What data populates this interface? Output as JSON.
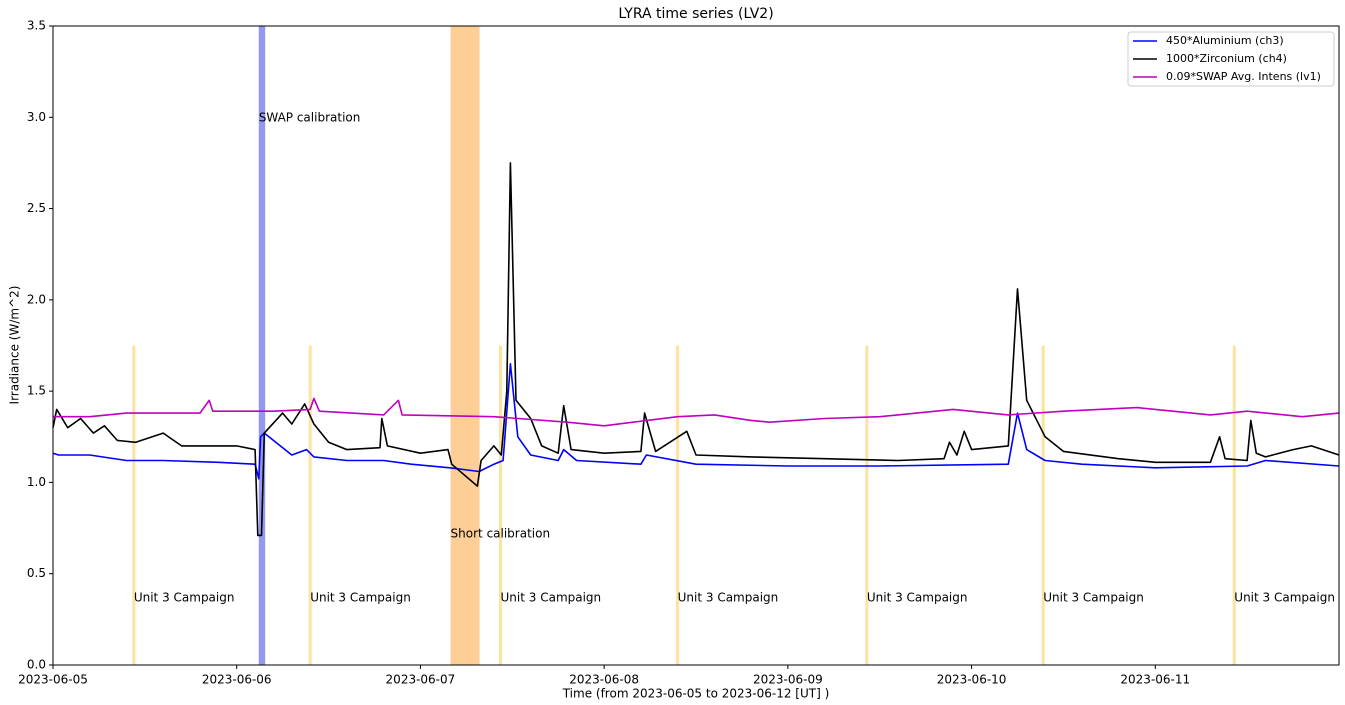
{
  "chart_data": {
    "type": "line",
    "title": "LYRA time series (LV2)",
    "xlabel": "Time (from 2023-06-05 to 2023-06-12 [UT] )",
    "ylabel": "Irradiance (W/m^2)",
    "xlim": [
      0,
      7
    ],
    "xticks": [
      {
        "value": 0,
        "label": "2023-06-05"
      },
      {
        "value": 1,
        "label": "2023-06-06"
      },
      {
        "value": 2,
        "label": "2023-06-07"
      },
      {
        "value": 3,
        "label": "2023-06-08"
      },
      {
        "value": 4,
        "label": "2023-06-09"
      },
      {
        "value": 5,
        "label": "2023-06-10"
      },
      {
        "value": 6,
        "label": "2023-06-11"
      }
    ],
    "ylim": [
      0,
      3.5
    ],
    "yticks": [
      {
        "value": 0,
        "label": "0.0"
      },
      {
        "value": 0.5,
        "label": "0.5"
      },
      {
        "value": 1,
        "label": "1.0"
      },
      {
        "value": 1.5,
        "label": "1.5"
      },
      {
        "value": 2,
        "label": "2.0"
      },
      {
        "value": 2.5,
        "label": "2.5"
      },
      {
        "value": 3,
        "label": "3.0"
      },
      {
        "value": 3.5,
        "label": "3.5"
      }
    ],
    "legend": "upper right",
    "spans": [
      {
        "label": "SWAP calibration",
        "x": [
          1.12,
          1.155
        ],
        "color": "#9499f0"
      },
      {
        "label": "Short calibration",
        "x": [
          2.164,
          2.322
        ],
        "color": "#fdcf96"
      }
    ],
    "campaigns": {
      "label": "Unit 3 Campaign",
      "x": [
        0.44,
        1.4,
        2.436,
        3.4,
        4.43,
        5.39,
        6.43
      ],
      "ymax": 1.75,
      "color": "#fde2a0"
    },
    "series": [
      {
        "name": "450*Aluminium (ch3)",
        "color": "#0000ff",
        "x": [
          0,
          0.03,
          0.2,
          0.4,
          0.6,
          0.9,
          1.1,
          1.12,
          1.13,
          1.15,
          1.3,
          1.38,
          1.42,
          1.6,
          1.8,
          1.95,
          2.16,
          2.32,
          2.4,
          2.45,
          2.49,
          2.53,
          2.6,
          2.75,
          2.78,
          2.85,
          3.2,
          3.23,
          3.5,
          4.0,
          4.5,
          5.2,
          5.25,
          5.3,
          5.4,
          5.6,
          6.0,
          6.5,
          6.6,
          7.0
        ],
        "values": [
          1.16,
          1.15,
          1.15,
          1.12,
          1.12,
          1.11,
          1.1,
          1.02,
          1.25,
          1.27,
          1.15,
          1.18,
          1.14,
          1.12,
          1.12,
          1.1,
          1.08,
          1.06,
          1.1,
          1.12,
          1.65,
          1.25,
          1.15,
          1.12,
          1.18,
          1.12,
          1.1,
          1.15,
          1.1,
          1.09,
          1.09,
          1.1,
          1.38,
          1.18,
          1.12,
          1.1,
          1.08,
          1.09,
          1.12,
          1.09
        ]
      },
      {
        "name": "1000*Zirconium (ch4)",
        "color": "#000000",
        "x": [
          0,
          0.02,
          0.08,
          0.15,
          0.22,
          0.28,
          0.35,
          0.45,
          0.6,
          0.7,
          0.9,
          1.0,
          1.1,
          1.115,
          1.135,
          1.15,
          1.25,
          1.3,
          1.37,
          1.42,
          1.5,
          1.6,
          1.78,
          1.79,
          1.82,
          2.0,
          2.15,
          2.17,
          2.31,
          2.33,
          2.4,
          2.44,
          2.47,
          2.49,
          2.52,
          2.6,
          2.66,
          2.75,
          2.78,
          2.82,
          3.0,
          3.2,
          3.22,
          3.28,
          3.45,
          3.5,
          3.8,
          4.2,
          4.6,
          4.85,
          4.88,
          4.92,
          4.96,
          5.0,
          5.2,
          5.25,
          5.3,
          5.4,
          5.5,
          5.8,
          6.0,
          6.3,
          6.35,
          6.38,
          6.5,
          6.52,
          6.55,
          6.6,
          6.75,
          6.85,
          7.0
        ],
        "values": [
          1.3,
          1.4,
          1.3,
          1.35,
          1.27,
          1.31,
          1.23,
          1.22,
          1.27,
          1.2,
          1.2,
          1.2,
          1.18,
          0.71,
          0.71,
          1.27,
          1.38,
          1.32,
          1.43,
          1.32,
          1.22,
          1.18,
          1.19,
          1.35,
          1.2,
          1.16,
          1.18,
          1.1,
          0.98,
          1.12,
          1.2,
          1.15,
          1.5,
          2.75,
          1.45,
          1.35,
          1.2,
          1.16,
          1.42,
          1.18,
          1.16,
          1.17,
          1.38,
          1.17,
          1.28,
          1.15,
          1.14,
          1.13,
          1.12,
          1.13,
          1.22,
          1.15,
          1.28,
          1.18,
          1.2,
          2.06,
          1.45,
          1.25,
          1.17,
          1.13,
          1.11,
          1.11,
          1.25,
          1.13,
          1.12,
          1.34,
          1.16,
          1.14,
          1.18,
          1.2,
          1.15
        ]
      },
      {
        "name": "0.09*SWAP Avg. Intens (lv1)",
        "color": "#bf00bf",
        "x": [
          0,
          0.2,
          0.4,
          0.8,
          0.85,
          0.87,
          1.2,
          1.4,
          1.42,
          1.45,
          1.8,
          1.88,
          1.9,
          2.4,
          2.8,
          3.0,
          3.4,
          3.6,
          3.8,
          3.9,
          4.2,
          4.5,
          4.9,
          5.2,
          5.5,
          5.9,
          6.3,
          6.5,
          6.8,
          7.0
        ],
        "values": [
          1.36,
          1.36,
          1.38,
          1.38,
          1.45,
          1.39,
          1.39,
          1.4,
          1.46,
          1.39,
          1.37,
          1.45,
          1.37,
          1.36,
          1.33,
          1.31,
          1.36,
          1.37,
          1.34,
          1.33,
          1.35,
          1.36,
          1.4,
          1.37,
          1.39,
          1.41,
          1.37,
          1.39,
          1.36,
          1.38
        ]
      }
    ]
  }
}
